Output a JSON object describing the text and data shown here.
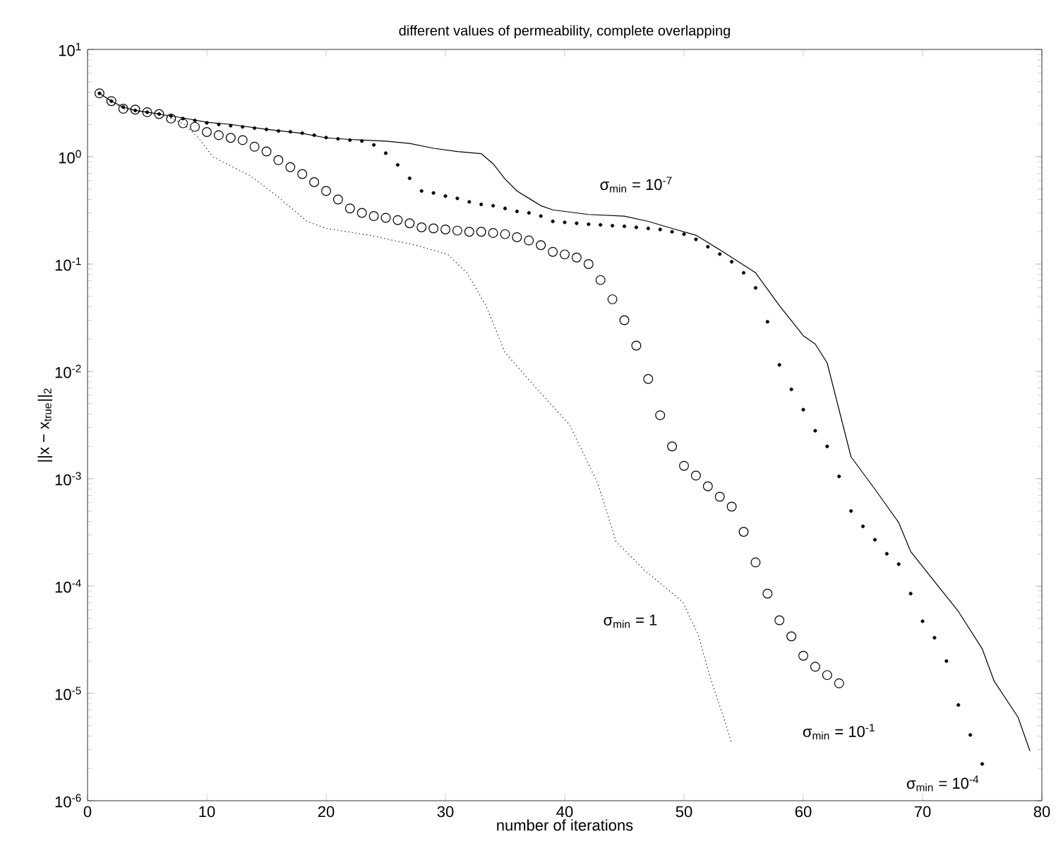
{
  "chart_data": {
    "type": "line",
    "title": "different values of permeability, complete overlapping",
    "xlabel": "number of iterations",
    "ylabel": "||x − x$_{true}$||$_{2}$",
    "log": "y",
    "xlim": [
      0,
      80
    ],
    "ylim": [
      1e-06,
      10
    ],
    "xticks": [
      0,
      10,
      20,
      30,
      40,
      50,
      60,
      70,
      80
    ],
    "yticks": [
      {
        "value": 1e-06,
        "label": "10$^{-6}$"
      },
      {
        "value": 1e-05,
        "label": "10$^{-5}$"
      },
      {
        "value": 0.0001,
        "label": "10$^{-4}$"
      },
      {
        "value": 0.001,
        "label": "10$^{-3}$"
      },
      {
        "value": 0.01,
        "label": "10$^{-2}$"
      },
      {
        "value": 0.1,
        "label": "10$^{-1}$"
      },
      {
        "value": 1,
        "label": "10$^{0}$"
      },
      {
        "value": 10,
        "label": "10$^{1}$"
      }
    ],
    "series": [
      {
        "name": "σ$_{min}$ = 10$^{-7}$",
        "line_style": "solid",
        "color": "#000000",
        "x": [
          1,
          2,
          3,
          4,
          5,
          6,
          8,
          10,
          12,
          15,
          18,
          20,
          22,
          25,
          27,
          29,
          31,
          33,
          34,
          35,
          36,
          37,
          38,
          39,
          42,
          45,
          47,
          49,
          51,
          53,
          56,
          58,
          60,
          61,
          62,
          64,
          66,
          68,
          69,
          71,
          73,
          75,
          76,
          78,
          79
        ],
        "values": [
          3.9,
          3.3,
          2.9,
          2.7,
          2.6,
          2.5,
          2.3,
          2.1,
          2.0,
          1.8,
          1.65,
          1.5,
          1.45,
          1.4,
          1.33,
          1.2,
          1.12,
          1.07,
          0.86,
          0.62,
          0.48,
          0.41,
          0.35,
          0.32,
          0.29,
          0.28,
          0.25,
          0.215,
          0.186,
          0.136,
          0.083,
          0.041,
          0.0215,
          0.018,
          0.012,
          0.0016,
          0.0008,
          0.00039,
          0.00021,
          0.00011,
          5.8e-05,
          2.6e-05,
          1.3e-05,
          6e-06,
          2.9e-06
        ]
      },
      {
        "name": "σ$_{min}$ = 10$^{-4}$",
        "type": "scatter",
        "marker": "circle",
        "color": "#000000",
        "x": [
          1,
          2,
          3,
          4,
          5,
          6,
          7,
          8,
          9,
          10,
          11,
          12,
          13,
          14,
          15,
          16,
          17,
          18,
          19,
          20,
          21,
          22,
          23,
          24,
          25,
          26,
          27,
          28,
          29,
          30,
          31,
          32,
          33,
          34,
          35,
          36,
          37,
          38,
          39,
          40,
          41,
          42,
          43,
          44,
          45,
          46,
          47,
          48,
          49,
          50,
          51,
          52,
          53,
          54,
          55,
          56,
          57,
          58,
          59,
          60,
          61,
          62,
          63,
          64,
          65,
          66,
          67,
          68,
          69,
          70,
          71,
          72,
          73,
          74,
          75
        ],
        "values": [
          3.9,
          3.3,
          2.9,
          2.7,
          2.6,
          2.5,
          2.4,
          2.27,
          2.18,
          2.07,
          2.0,
          1.95,
          1.9,
          1.85,
          1.8,
          1.74,
          1.71,
          1.66,
          1.59,
          1.51,
          1.47,
          1.43,
          1.4,
          1.29,
          1.08,
          0.84,
          0.63,
          0.48,
          0.46,
          0.43,
          0.41,
          0.38,
          0.36,
          0.35,
          0.33,
          0.31,
          0.3,
          0.28,
          0.25,
          0.245,
          0.24,
          0.235,
          0.232,
          0.228,
          0.225,
          0.22,
          0.215,
          0.21,
          0.2,
          0.19,
          0.17,
          0.145,
          0.124,
          0.105,
          0.083,
          0.06,
          0.029,
          0.0115,
          0.0068,
          0.0044,
          0.0028,
          0.002,
          0.00105,
          0.0005,
          0.00036,
          0.00027,
          0.0002,
          0.00016,
          8.5e-05,
          4.7e-05,
          3.3e-05,
          2e-05,
          7.8e-06,
          4.1e-06,
          2.2e-06
        ]
      },
      {
        "name": "σ$_{min}$ = 10$^{-1}$",
        "type": "scatter",
        "marker": "circle",
        "color": "#000000",
        "x": [
          1,
          2,
          3,
          4,
          5,
          6,
          7,
          8,
          9,
          10,
          11,
          12,
          13,
          14,
          15,
          16,
          17,
          18,
          19,
          20,
          21,
          22,
          23,
          24,
          25,
          26,
          27,
          28,
          29,
          30,
          31,
          32,
          33,
          34,
          35,
          36,
          37,
          38,
          39,
          40,
          41,
          42,
          43,
          44,
          45,
          46,
          47,
          48,
          49,
          50,
          51,
          52,
          53,
          54,
          55,
          56,
          57,
          58,
          59,
          60,
          61,
          62,
          63
        ],
        "values": [
          3.9,
          3.3,
          2.8,
          2.75,
          2.6,
          2.5,
          2.27,
          2.05,
          1.9,
          1.7,
          1.59,
          1.5,
          1.43,
          1.24,
          1.12,
          0.93,
          0.8,
          0.69,
          0.58,
          0.48,
          0.4,
          0.33,
          0.3,
          0.28,
          0.27,
          0.257,
          0.24,
          0.22,
          0.215,
          0.21,
          0.205,
          0.2,
          0.2,
          0.195,
          0.19,
          0.178,
          0.166,
          0.15,
          0.13,
          0.123,
          0.115,
          0.1,
          0.071,
          0.047,
          0.03,
          0.0174,
          0.0085,
          0.0039,
          0.002,
          0.00132,
          0.00107,
          0.00085,
          0.00068,
          0.00055,
          0.00032,
          0.000166,
          8.5e-05,
          4.8e-05,
          3.4e-05,
          2.24e-05,
          1.77e-05,
          1.48e-05,
          1.24e-05
        ]
      },
      {
        "name": "σ$_{min}$ = 1",
        "line_style": "dotted",
        "color": "#000000",
        "x": [
          1,
          2,
          3,
          4,
          5,
          6,
          7,
          8,
          9.3,
          10.5,
          13.7,
          16,
          18.4,
          20,
          23.6,
          27.5,
          30.2,
          31.8,
          33.4,
          35,
          37.8,
          40.4,
          42.8,
          44.3,
          46.7,
          49.9,
          51.2,
          52.2,
          53.4,
          54
        ],
        "values": [
          3.9,
          3.3,
          2.8,
          2.7,
          2.6,
          2.5,
          2.27,
          2.05,
          1.5,
          1.0,
          0.66,
          0.42,
          0.25,
          0.215,
          0.186,
          0.15,
          0.123,
          0.083,
          0.041,
          0.015,
          0.0066,
          0.0032,
          0.00089,
          0.00026,
          0.00014,
          7.1e-05,
          3.5e-05,
          1.4e-05,
          5.6e-06,
          3.4e-06
        ]
      }
    ]
  }
}
